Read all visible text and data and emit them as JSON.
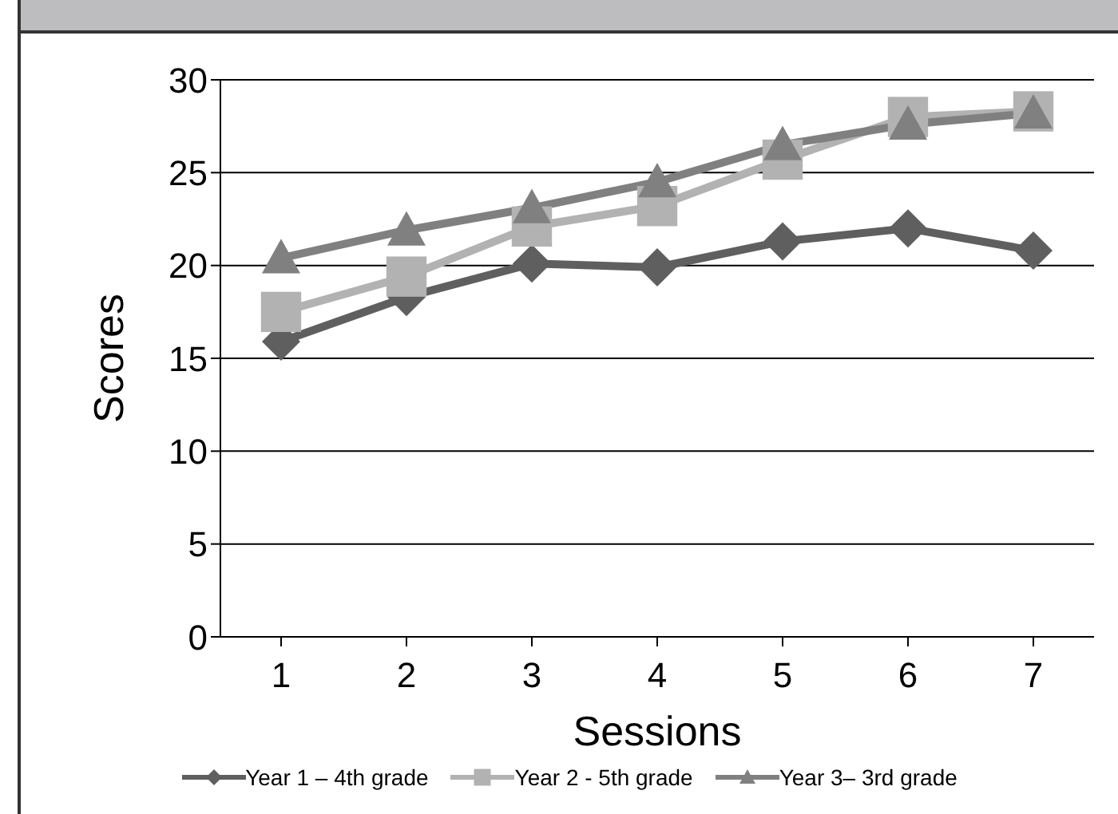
{
  "chart_data": {
    "type": "line",
    "xlabel": "Sessions",
    "ylabel": "Scores",
    "categories": [
      "1",
      "2",
      "3",
      "4",
      "5",
      "6",
      "7"
    ],
    "series": [
      {
        "name": "Year 1 – 4th grade",
        "color": "#5f5f5f",
        "marker": "diamond",
        "values": [
          15.9,
          18.3,
          20.1,
          19.9,
          21.3,
          22.0,
          20.8
        ]
      },
      {
        "name": "Year 2 - 5th grade",
        "color": "#b2b2b2",
        "marker": "square",
        "values": [
          17.5,
          19.4,
          22.1,
          23.2,
          25.7,
          28.0,
          28.3
        ]
      },
      {
        "name": "Year 3– 3rd grade",
        "color": "#808080",
        "marker": "triangle",
        "values": [
          20.4,
          21.9,
          23.1,
          24.5,
          26.5,
          27.6,
          28.2
        ]
      }
    ],
    "ylim": [
      0,
      30
    ],
    "yticks": [
      0,
      5,
      10,
      15,
      20,
      25,
      30
    ],
    "grid": "y",
    "legend": "bottom",
    "line_style": "solid"
  }
}
